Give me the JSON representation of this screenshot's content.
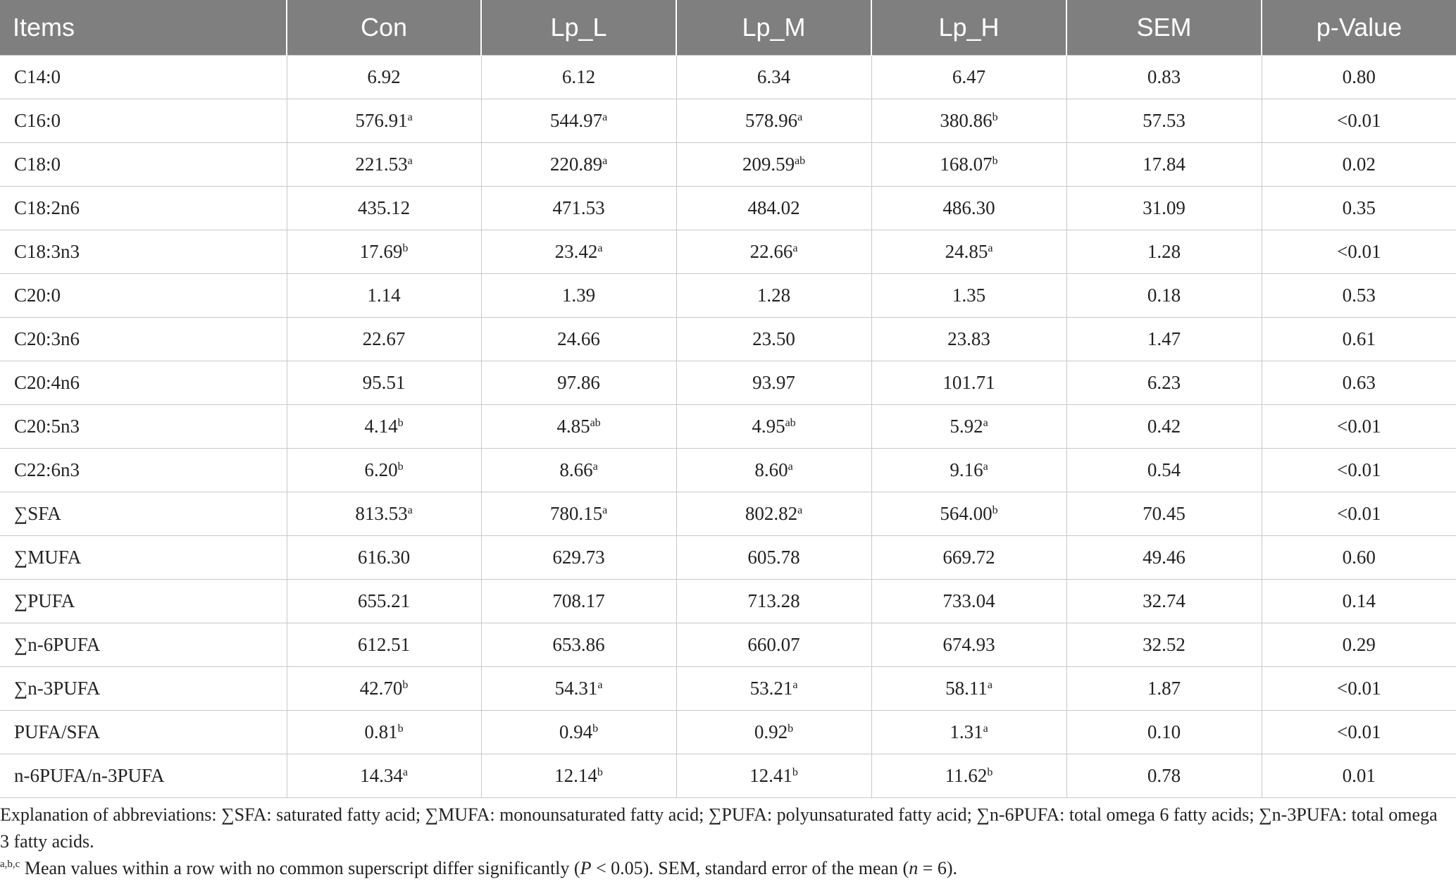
{
  "table": {
    "headers": [
      "Items",
      "Con",
      "Lp_L",
      "Lp_M",
      "Lp_H",
      "SEM",
      "p-Value"
    ],
    "rows": [
      {
        "item": "C14:0",
        "cells": [
          {
            "v": "6.92",
            "s": ""
          },
          {
            "v": "6.12",
            "s": ""
          },
          {
            "v": "6.34",
            "s": ""
          },
          {
            "v": "6.47",
            "s": ""
          },
          {
            "v": "0.83",
            "s": ""
          },
          {
            "v": "0.80",
            "s": ""
          }
        ]
      },
      {
        "item": "C16:0",
        "cells": [
          {
            "v": "576.91",
            "s": "a"
          },
          {
            "v": "544.97",
            "s": "a"
          },
          {
            "v": "578.96",
            "s": "a"
          },
          {
            "v": "380.86",
            "s": "b"
          },
          {
            "v": "57.53",
            "s": ""
          },
          {
            "v": "<0.01",
            "s": ""
          }
        ]
      },
      {
        "item": "C18:0",
        "cells": [
          {
            "v": "221.53",
            "s": "a"
          },
          {
            "v": "220.89",
            "s": "a"
          },
          {
            "v": "209.59",
            "s": "ab"
          },
          {
            "v": "168.07",
            "s": "b"
          },
          {
            "v": "17.84",
            "s": ""
          },
          {
            "v": "0.02",
            "s": ""
          }
        ]
      },
      {
        "item": "C18:2n6",
        "cells": [
          {
            "v": "435.12",
            "s": ""
          },
          {
            "v": "471.53",
            "s": ""
          },
          {
            "v": "484.02",
            "s": ""
          },
          {
            "v": "486.30",
            "s": ""
          },
          {
            "v": "31.09",
            "s": ""
          },
          {
            "v": "0.35",
            "s": ""
          }
        ]
      },
      {
        "item": "C18:3n3",
        "cells": [
          {
            "v": "17.69",
            "s": "b"
          },
          {
            "v": "23.42",
            "s": "a"
          },
          {
            "v": "22.66",
            "s": "a"
          },
          {
            "v": "24.85",
            "s": "a"
          },
          {
            "v": "1.28",
            "s": ""
          },
          {
            "v": "<0.01",
            "s": ""
          }
        ]
      },
      {
        "item": "C20:0",
        "cells": [
          {
            "v": "1.14",
            "s": ""
          },
          {
            "v": "1.39",
            "s": ""
          },
          {
            "v": "1.28",
            "s": ""
          },
          {
            "v": "1.35",
            "s": ""
          },
          {
            "v": "0.18",
            "s": ""
          },
          {
            "v": "0.53",
            "s": ""
          }
        ]
      },
      {
        "item": "C20:3n6",
        "cells": [
          {
            "v": "22.67",
            "s": ""
          },
          {
            "v": "24.66",
            "s": ""
          },
          {
            "v": "23.50",
            "s": ""
          },
          {
            "v": "23.83",
            "s": ""
          },
          {
            "v": "1.47",
            "s": ""
          },
          {
            "v": "0.61",
            "s": ""
          }
        ]
      },
      {
        "item": "C20:4n6",
        "cells": [
          {
            "v": "95.51",
            "s": ""
          },
          {
            "v": "97.86",
            "s": ""
          },
          {
            "v": "93.97",
            "s": ""
          },
          {
            "v": "101.71",
            "s": ""
          },
          {
            "v": "6.23",
            "s": ""
          },
          {
            "v": "0.63",
            "s": ""
          }
        ]
      },
      {
        "item": "C20:5n3",
        "cells": [
          {
            "v": "4.14",
            "s": "b"
          },
          {
            "v": "4.85",
            "s": "ab"
          },
          {
            "v": "4.95",
            "s": "ab"
          },
          {
            "v": "5.92",
            "s": "a"
          },
          {
            "v": "0.42",
            "s": ""
          },
          {
            "v": "<0.01",
            "s": ""
          }
        ]
      },
      {
        "item": "C22:6n3",
        "cells": [
          {
            "v": "6.20",
            "s": "b"
          },
          {
            "v": "8.66",
            "s": "a"
          },
          {
            "v": "8.60",
            "s": "a"
          },
          {
            "v": "9.16",
            "s": "a"
          },
          {
            "v": "0.54",
            "s": ""
          },
          {
            "v": "<0.01",
            "s": ""
          }
        ]
      },
      {
        "item": "∑SFA",
        "cells": [
          {
            "v": "813.53",
            "s": "a"
          },
          {
            "v": "780.15",
            "s": "a"
          },
          {
            "v": "802.82",
            "s": "a"
          },
          {
            "v": "564.00",
            "s": "b"
          },
          {
            "v": "70.45",
            "s": ""
          },
          {
            "v": "<0.01",
            "s": ""
          }
        ]
      },
      {
        "item": "∑MUFA",
        "cells": [
          {
            "v": "616.30",
            "s": ""
          },
          {
            "v": "629.73",
            "s": ""
          },
          {
            "v": "605.78",
            "s": ""
          },
          {
            "v": "669.72",
            "s": ""
          },
          {
            "v": "49.46",
            "s": ""
          },
          {
            "v": "0.60",
            "s": ""
          }
        ]
      },
      {
        "item": "∑PUFA",
        "cells": [
          {
            "v": "655.21",
            "s": ""
          },
          {
            "v": "708.17",
            "s": ""
          },
          {
            "v": "713.28",
            "s": ""
          },
          {
            "v": "733.04",
            "s": ""
          },
          {
            "v": "32.74",
            "s": ""
          },
          {
            "v": "0.14",
            "s": ""
          }
        ]
      },
      {
        "item": "∑n-6PUFA",
        "cells": [
          {
            "v": "612.51",
            "s": ""
          },
          {
            "v": "653.86",
            "s": ""
          },
          {
            "v": "660.07",
            "s": ""
          },
          {
            "v": "674.93",
            "s": ""
          },
          {
            "v": "32.52",
            "s": ""
          },
          {
            "v": "0.29",
            "s": ""
          }
        ]
      },
      {
        "item": "∑n-3PUFA",
        "cells": [
          {
            "v": "42.70",
            "s": "b"
          },
          {
            "v": "54.31",
            "s": "a"
          },
          {
            "v": "53.21",
            "s": "a"
          },
          {
            "v": "58.11",
            "s": "a"
          },
          {
            "v": "1.87",
            "s": ""
          },
          {
            "v": "<0.01",
            "s": ""
          }
        ]
      },
      {
        "item": "PUFA/SFA",
        "cells": [
          {
            "v": "0.81",
            "s": "b"
          },
          {
            "v": "0.94",
            "s": "b"
          },
          {
            "v": "0.92",
            "s": "b"
          },
          {
            "v": "1.31",
            "s": "a"
          },
          {
            "v": "0.10",
            "s": ""
          },
          {
            "v": "<0.01",
            "s": ""
          }
        ]
      },
      {
        "item": "n-6PUFA/n-3PUFA",
        "cells": [
          {
            "v": "14.34",
            "s": "a"
          },
          {
            "v": "12.14",
            "s": "b"
          },
          {
            "v": "12.41",
            "s": "b"
          },
          {
            "v": "11.62",
            "s": "b"
          },
          {
            "v": "0.78",
            "s": ""
          },
          {
            "v": "0.01",
            "s": ""
          }
        ]
      }
    ]
  },
  "footnotes": {
    "abbreviations": "Explanation of abbreviations: ∑SFA: saturated fatty acid; ∑MUFA: monounsaturated fatty acid; ∑PUFA: polyunsaturated fatty acid; ∑n-6PUFA: total omega 6 fatty acids; ∑n-3PUFA: total omega 3 fatty acids.",
    "superscript_marker": "a,b,c",
    "significance_pre": " Mean values within a row with no common superscript differ significantly (",
    "p_symbol": "P",
    "significance_mid": " < 0.05). SEM, standard error of the mean (",
    "n_symbol": "n",
    "significance_post": " = 6)."
  }
}
